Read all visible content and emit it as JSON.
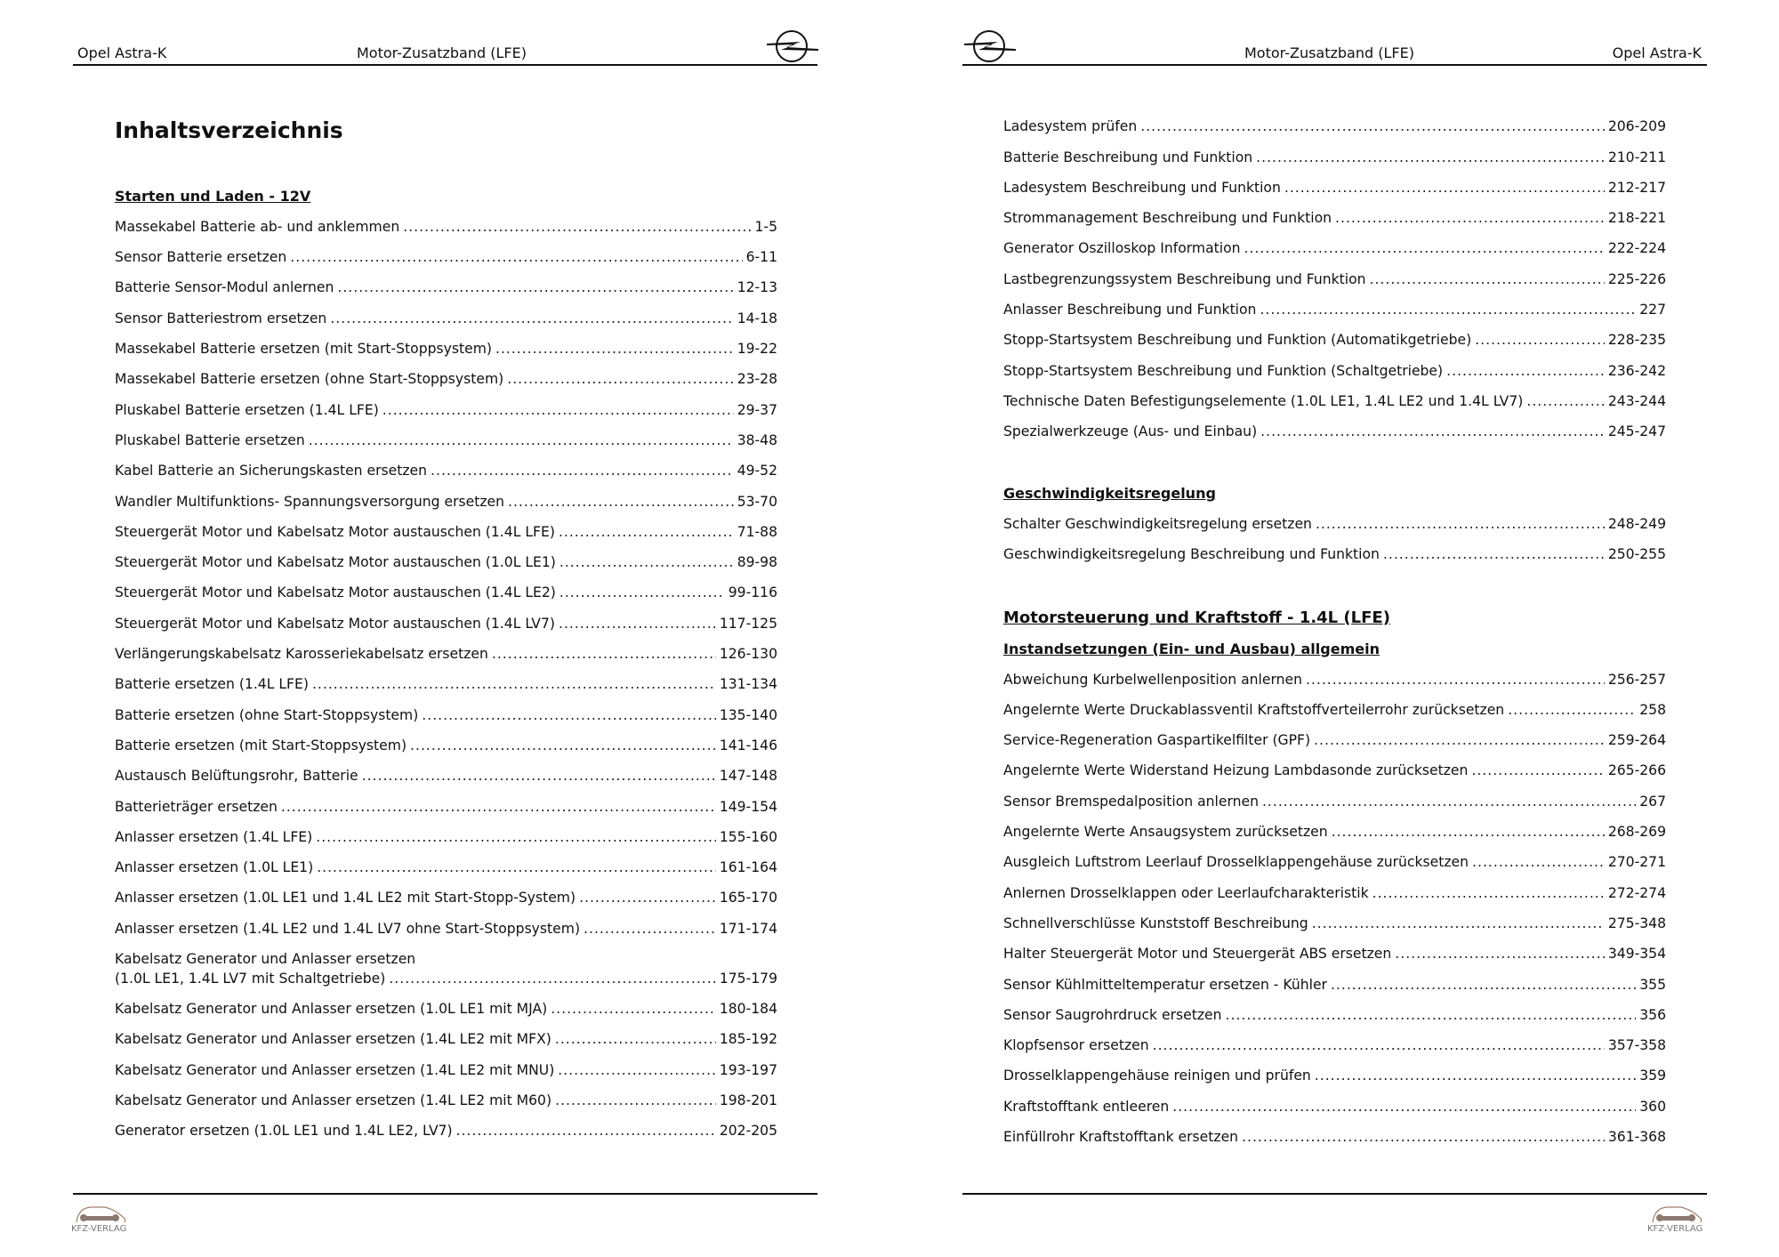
{
  "header": {
    "brand": "Opel Astra-K",
    "volume": "Motor-Zusatzband (LFE)"
  },
  "footer": {
    "logo_text": "KFZ-VERLAG"
  },
  "left": {
    "title": "Inhaltsverzeichnis",
    "section": "Starten und Laden - 12V",
    "entries": [
      {
        "text": "Massekabel Batterie ab- und anklemmen",
        "pages": "1-5"
      },
      {
        "text": "Sensor Batterie ersetzen",
        "pages": "6-11"
      },
      {
        "text": "Batterie Sensor-Modul anlernen",
        "pages": "12-13"
      },
      {
        "text": "Sensor Batteriestrom ersetzen",
        "pages": "14-18"
      },
      {
        "text": "Massekabel Batterie ersetzen (mit Start-Stoppsystem)",
        "pages": "19-22"
      },
      {
        "text": "Massekabel Batterie ersetzen (ohne Start-Stoppsystem)",
        "pages": "23-28"
      },
      {
        "text": "Pluskabel Batterie ersetzen (1.4L LFE)",
        "pages": "29-37"
      },
      {
        "text": "Pluskabel Batterie ersetzen",
        "pages": "38-48"
      },
      {
        "text": "Kabel Batterie an Sicherungskasten ersetzen",
        "pages": "49-52"
      },
      {
        "text": "Wandler Multifunktions- Spannungsversorgung ersetzen",
        "pages": "53-70"
      },
      {
        "text": "Steuergerät Motor und Kabelsatz Motor austauschen (1.4L LFE)",
        "pages": "71-88"
      },
      {
        "text": "Steuergerät Motor und Kabelsatz Motor austauschen (1.0L LE1)",
        "pages": "89-98"
      },
      {
        "text": "Steuergerät Motor und Kabelsatz Motor austauschen (1.4L LE2)",
        "pages": "99-116"
      },
      {
        "text": "Steuergerät Motor und Kabelsatz Motor austauschen (1.4L LV7)",
        "pages": "117-125"
      },
      {
        "text": "Verlängerungskabelsatz Karosseriekabelsatz ersetzen",
        "pages": "126-130"
      },
      {
        "text": "Batterie ersetzen (1.4L LFE)",
        "pages": "131-134"
      },
      {
        "text": "Batterie ersetzen (ohne Start-Stoppsystem)",
        "pages": "135-140"
      },
      {
        "text": "Batterie ersetzen (mit Start-Stoppsystem)",
        "pages": "141-146"
      },
      {
        "text": "Austausch Belüftungsrohr, Batterie",
        "pages": "147-148"
      },
      {
        "text": "Batterieträger ersetzen",
        "pages": "149-154"
      },
      {
        "text": "Anlasser ersetzen (1.4L LFE)",
        "pages": "155-160"
      },
      {
        "text": "Anlasser ersetzen (1.0L LE1)",
        "pages": "161-164"
      },
      {
        "text": "Anlasser ersetzen (1.0L LE1 und 1.4L LE2 mit Start-Stopp-System)",
        "pages": "165-170"
      },
      {
        "text": "Anlasser ersetzen (1.4L LE2 und 1.4L LV7 ohne Start-Stoppsystem)",
        "pages": "171-174"
      },
      {
        "text": "Kabelsatz Generator und Anlasser ersetzen",
        "text2": "(1.0L LE1, 1.4L LV7 mit Schaltgetriebe)",
        "pages": "175-179"
      },
      {
        "text": "Kabelsatz Generator und Anlasser ersetzen (1.0L LE1 mit MJA)",
        "pages": "180-184"
      },
      {
        "text": "Kabelsatz Generator und Anlasser ersetzen (1.4L LE2 mit MFX)",
        "pages": "185-192"
      },
      {
        "text": "Kabelsatz Generator und Anlasser ersetzen (1.4L LE2 mit MNU)",
        "pages": "193-197"
      },
      {
        "text": "Kabelsatz Generator und Anlasser ersetzen (1.4L LE2 mit M60)",
        "pages": "198-201"
      },
      {
        "text": "Generator ersetzen (1.0L LE1 und 1.4L LE2, LV7)",
        "pages": "202-205"
      }
    ]
  },
  "right": {
    "entries_a": [
      {
        "text": "Ladesystem prüfen",
        "pages": "206-209"
      },
      {
        "text": "Batterie Beschreibung und Funktion",
        "pages": "210-211"
      },
      {
        "text": "Ladesystem Beschreibung und Funktion",
        "pages": "212-217"
      },
      {
        "text": "Strommanagement Beschreibung und Funktion",
        "pages": "218-221"
      },
      {
        "text": "Generator Oszilloskop Information",
        "pages": "222-224"
      },
      {
        "text": "Lastbegrenzungssystem Beschreibung und Funktion",
        "pages": "225-226"
      },
      {
        "text": "Anlasser Beschreibung und Funktion",
        "pages": "227"
      },
      {
        "text": "Stopp-Startsystem Beschreibung und Funktion (Automatikgetriebe)",
        "pages": "228-235"
      },
      {
        "text": "Stopp-Startsystem Beschreibung und Funktion (Schaltgetriebe)",
        "pages": "236-242"
      },
      {
        "text": "Technische Daten Befestigungselemente (1.0L LE1, 1.4L LE2 und 1.4L LV7)",
        "pages": "243-244"
      },
      {
        "text": "Spezialwerkzeuge (Aus- und Einbau)",
        "pages": "245-247"
      }
    ],
    "section_b": "Geschwindigkeitsregelung",
    "entries_b": [
      {
        "text": "Schalter Geschwindigkeitsregelung ersetzen",
        "pages": "248-249"
      },
      {
        "text": "Geschwindigkeitsregelung Beschreibung und Funktion",
        "pages": "250-255"
      }
    ],
    "section_c": "Motorsteuerung und Kraftstoff - 1.4L (LFE)",
    "subsection_c": "Instandsetzungen (Ein- und Ausbau) allgemein",
    "entries_c": [
      {
        "text": "Abweichung Kurbelwellenposition anlernen",
        "pages": "256-257"
      },
      {
        "text": "Angelernte Werte Druckablassventil Kraftstoffverteilerrohr zurücksetzen",
        "pages": "258"
      },
      {
        "text": "Service-Regeneration Gaspartikelfilter (GPF)",
        "pages": "259-264"
      },
      {
        "text": "Angelernte Werte Widerstand Heizung Lambdasonde zurücksetzen",
        "pages": "265-266"
      },
      {
        "text": "Sensor Bremspedalposition anlernen",
        "pages": "267"
      },
      {
        "text": "Angelernte Werte Ansaugsystem zurücksetzen",
        "pages": "268-269"
      },
      {
        "text": "Ausgleich Luftstrom Leerlauf Drosselklappengehäuse zurücksetzen",
        "pages": "270-271"
      },
      {
        "text": "Anlernen Drosselklappen oder Leerlaufcharakteristik",
        "pages": "272-274"
      },
      {
        "text": "Schnellverschlüsse Kunststoff Beschreibung",
        "pages": "275-348"
      },
      {
        "text": "Halter Steuergerät Motor und Steuergerät ABS ersetzen",
        "pages": "349-354"
      },
      {
        "text": "Sensor Kühlmitteltemperatur ersetzen - Kühler",
        "pages": "355"
      },
      {
        "text": "Sensor Saugrohrdruck ersetzen",
        "pages": "356"
      },
      {
        "text": "Klopfsensor ersetzen",
        "pages": "357-358"
      },
      {
        "text": "Drosselklappengehäuse reinigen und prüfen",
        "pages": "359"
      },
      {
        "text": "Kraftstofftank entleeren",
        "pages": "360"
      },
      {
        "text": "Einfüllrohr Kraftstofftank ersetzen",
        "pages": "361-368"
      }
    ]
  }
}
